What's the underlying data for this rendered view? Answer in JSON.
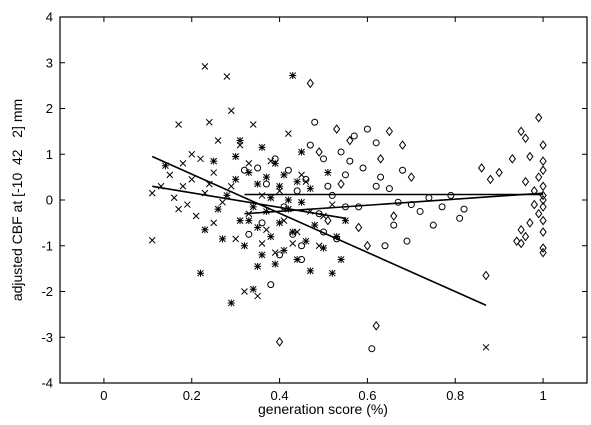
{
  "chart_data": {
    "type": "scatter",
    "title": "",
    "xlabel": "generation score (%)",
    "ylabel": "adjusted CBF at [-10  42   2] mm",
    "xlim": [
      -0.1,
      1.1
    ],
    "ylim": [
      -4,
      4
    ],
    "xticks": [
      0,
      0.2,
      0.4,
      0.6,
      0.8,
      1
    ],
    "xtick_labels": [
      "0",
      "0.2",
      "0.4",
      "0.6",
      "0.8",
      "1"
    ],
    "yticks": [
      -4,
      -3,
      -2,
      -1,
      0,
      1,
      2,
      3,
      4
    ],
    "ytick_labels": [
      "-4",
      "-3",
      "-2",
      "-1",
      "0",
      "1",
      "2",
      "3",
      "4"
    ],
    "grid": false,
    "colors": {
      "ink": "#000000",
      "background": "#ffffff"
    },
    "series": [
      {
        "marker": "x",
        "points": [
          [
            0.11,
            0.15
          ],
          [
            0.11,
            -0.88
          ],
          [
            0.13,
            0.3
          ],
          [
            0.15,
            0.55
          ],
          [
            0.16,
            0.05
          ],
          [
            0.17,
            1.65
          ],
          [
            0.17,
            -0.2
          ],
          [
            0.18,
            0.8
          ],
          [
            0.18,
            0.3
          ],
          [
            0.19,
            -0.1
          ],
          [
            0.2,
            0.45
          ],
          [
            0.2,
            1.0
          ],
          [
            0.21,
            -0.35
          ],
          [
            0.22,
            0.9
          ],
          [
            0.23,
            2.92
          ],
          [
            0.23,
            0.15
          ],
          [
            0.24,
            1.7
          ],
          [
            0.25,
            -0.5
          ],
          [
            0.25,
            0.6
          ],
          [
            0.26,
            1.3
          ],
          [
            0.27,
            -0.05
          ],
          [
            0.28,
            2.7
          ],
          [
            0.29,
            1.95
          ],
          [
            0.29,
            0.3
          ],
          [
            0.3,
            -0.85
          ],
          [
            0.31,
            1.2
          ],
          [
            0.32,
            -2.0
          ],
          [
            0.33,
            -0.3
          ],
          [
            0.34,
            1.65
          ],
          [
            0.35,
            -2.1
          ],
          [
            0.36,
            0.1
          ],
          [
            0.37,
            -0.65
          ],
          [
            0.38,
            0.85
          ],
          [
            0.39,
            -1.15
          ],
          [
            0.4,
            0.2
          ],
          [
            0.41,
            -0.45
          ],
          [
            0.42,
            1.45
          ],
          [
            0.44,
            -0.7
          ],
          [
            0.45,
            0.55
          ],
          [
            0.47,
            -0.25
          ],
          [
            0.49,
            -1.0
          ],
          [
            0.5,
            -0.35
          ],
          [
            0.52,
            -0.1
          ],
          [
            0.87,
            -3.22
          ],
          [
            0.24,
            0.35
          ],
          [
            0.33,
            0.8
          ],
          [
            0.36,
            -0.95
          ],
          [
            0.43,
            -0.95
          ],
          [
            0.46,
            0.4
          ]
        ]
      },
      {
        "marker": "star",
        "points": [
          [
            0.14,
            0.75
          ],
          [
            0.22,
            -1.6
          ],
          [
            0.23,
            -0.65
          ],
          [
            0.25,
            0.85
          ],
          [
            0.26,
            -0.2
          ],
          [
            0.27,
            -0.85
          ],
          [
            0.28,
            0.1
          ],
          [
            0.29,
            -2.25
          ],
          [
            0.3,
            0.45
          ],
          [
            0.31,
            -0.45
          ],
          [
            0.31,
            1.3
          ],
          [
            0.32,
            -1.0
          ],
          [
            0.33,
            0.6
          ],
          [
            0.34,
            -0.15
          ],
          [
            0.34,
            -1.95
          ],
          [
            0.35,
            0.35
          ],
          [
            0.35,
            -0.6
          ],
          [
            0.36,
            1.15
          ],
          [
            0.36,
            -1.2
          ],
          [
            0.37,
            0.5
          ],
          [
            0.37,
            -0.25
          ],
          [
            0.38,
            0.05
          ],
          [
            0.38,
            -0.8
          ],
          [
            0.39,
            0.8
          ],
          [
            0.39,
            -1.4
          ],
          [
            0.4,
            0.3
          ],
          [
            0.4,
            -0.5
          ],
          [
            0.41,
            0.55
          ],
          [
            0.41,
            -1.1
          ],
          [
            0.42,
            0.0
          ],
          [
            0.42,
            -0.2
          ],
          [
            0.43,
            2.72
          ],
          [
            0.43,
            -0.7
          ],
          [
            0.44,
            0.4
          ],
          [
            0.44,
            -1.3
          ],
          [
            0.45,
            1.05
          ],
          [
            0.45,
            -0.05
          ],
          [
            0.46,
            -0.9
          ],
          [
            0.47,
            0.25
          ],
          [
            0.47,
            -1.55
          ],
          [
            0.48,
            -0.55
          ],
          [
            0.5,
            -1.05
          ],
          [
            0.51,
            0.6
          ],
          [
            0.52,
            -1.6
          ],
          [
            0.53,
            -0.8
          ],
          [
            0.54,
            -1.3
          ],
          [
            0.55,
            -0.45
          ],
          [
            0.3,
            0.95
          ],
          [
            0.33,
            -0.45
          ],
          [
            0.35,
            -1.45
          ]
        ]
      },
      {
        "marker": "circle",
        "points": [
          [
            0.32,
            0.65
          ],
          [
            0.33,
            -0.75
          ],
          [
            0.35,
            0.7
          ],
          [
            0.36,
            -0.5
          ],
          [
            0.37,
            0.35
          ],
          [
            0.38,
            -1.85
          ],
          [
            0.39,
            0.9
          ],
          [
            0.4,
            -1.2
          ],
          [
            0.41,
            -0.15
          ],
          [
            0.42,
            0.65
          ],
          [
            0.43,
            -0.75
          ],
          [
            0.44,
            0.2
          ],
          [
            0.45,
            -1.0
          ],
          [
            0.46,
            0.45
          ],
          [
            0.47,
            1.2
          ],
          [
            0.48,
            1.7
          ],
          [
            0.49,
            -0.3
          ],
          [
            0.5,
            0.9
          ],
          [
            0.51,
            0.3
          ],
          [
            0.52,
            0.1
          ],
          [
            0.53,
            -0.85
          ],
          [
            0.54,
            1.05
          ],
          [
            0.55,
            0.55
          ],
          [
            0.56,
            0.85
          ],
          [
            0.57,
            1.4
          ],
          [
            0.58,
            -0.15
          ],
          [
            0.59,
            0.7
          ],
          [
            0.6,
            1.55
          ],
          [
            0.61,
            -3.25
          ],
          [
            0.62,
            1.25
          ],
          [
            0.63,
            0.5
          ],
          [
            0.64,
            -1.0
          ],
          [
            0.65,
            0.25
          ],
          [
            0.66,
            -0.55
          ],
          [
            0.67,
            -0.05
          ],
          [
            0.68,
            0.65
          ],
          [
            0.69,
            -0.9
          ],
          [
            0.7,
            -0.1
          ],
          [
            0.72,
            -0.25
          ],
          [
            0.74,
            0.05
          ],
          [
            0.75,
            -0.55
          ],
          [
            0.77,
            -0.15
          ],
          [
            0.79,
            0.1
          ],
          [
            0.81,
            -0.4
          ],
          [
            0.82,
            -0.2
          ],
          [
            0.45,
            -1.3
          ],
          [
            0.5,
            -0.7
          ],
          [
            0.55,
            -0.15
          ],
          [
            0.62,
            0.3
          ]
        ]
      },
      {
        "marker": "diamond",
        "points": [
          [
            0.47,
            2.55
          ],
          [
            0.49,
            1.05
          ],
          [
            0.51,
            -0.45
          ],
          [
            0.53,
            1.55
          ],
          [
            0.54,
            0.35
          ],
          [
            0.56,
            1.3
          ],
          [
            0.58,
            -0.6
          ],
          [
            0.6,
            -1.0
          ],
          [
            0.62,
            -2.75
          ],
          [
            0.63,
            0.9
          ],
          [
            0.65,
            1.5
          ],
          [
            0.66,
            -0.35
          ],
          [
            0.68,
            1.2
          ],
          [
            0.7,
            0.5
          ],
          [
            0.4,
            -3.1
          ],
          [
            0.86,
            0.7
          ],
          [
            0.87,
            -1.65
          ],
          [
            0.88,
            0.45
          ],
          [
            0.9,
            0.6
          ],
          [
            0.93,
            0.9
          ],
          [
            0.94,
            -0.9
          ],
          [
            0.95,
            1.5
          ],
          [
            0.95,
            -0.65
          ],
          [
            0.96,
            1.35
          ],
          [
            0.96,
            0.4
          ],
          [
            0.97,
            -0.5
          ],
          [
            0.97,
            0.95
          ],
          [
            0.98,
            0.2
          ],
          [
            0.98,
            -0.1
          ],
          [
            0.99,
            1.8
          ],
          [
            0.99,
            0.5
          ],
          [
            0.99,
            -0.3
          ],
          [
            1.0,
            1.2
          ],
          [
            1.0,
            0.85
          ],
          [
            1.0,
            0.65
          ],
          [
            1.0,
            0.3
          ],
          [
            1.0,
            0.1
          ],
          [
            1.0,
            -0.15
          ],
          [
            1.0,
            -0.45
          ],
          [
            1.0,
            -0.7
          ],
          [
            1.0,
            -1.05
          ],
          [
            1.0,
            -1.15
          ],
          [
            0.95,
            -0.95
          ],
          [
            0.96,
            -0.8
          ],
          [
            1.0,
            0.0
          ]
        ]
      }
    ],
    "regression_lines": [
      {
        "x": [
          0.11,
          0.87
        ],
        "y": [
          0.95,
          -2.3
        ]
      },
      {
        "x": [
          0.11,
          0.55
        ],
        "y": [
          0.3,
          -0.4
        ]
      },
      {
        "x": [
          0.32,
          1.0
        ],
        "y": [
          -0.3,
          0.15
        ]
      },
      {
        "x": [
          0.32,
          1.0
        ],
        "y": [
          0.12,
          0.12
        ]
      }
    ]
  }
}
